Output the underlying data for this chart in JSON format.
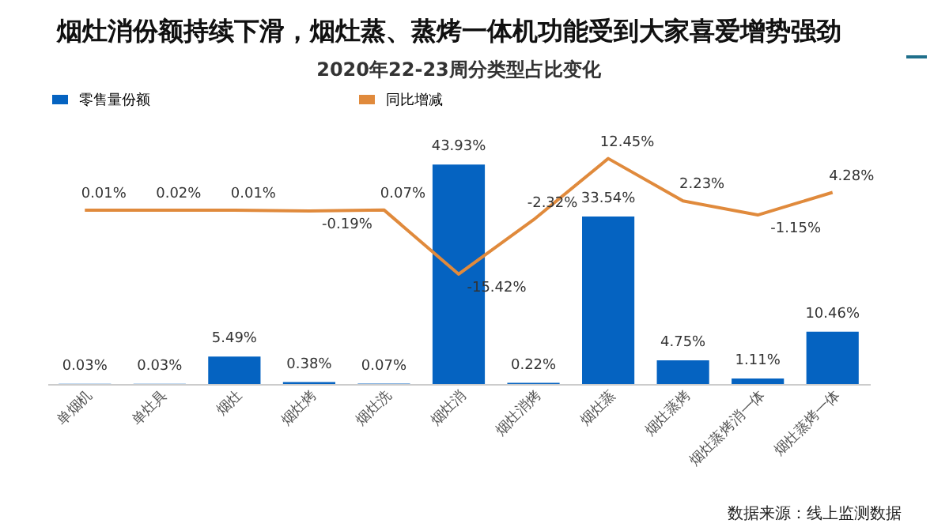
{
  "chart_data": {
    "type": "bar",
    "title": "烟灶消份额持续下滑，烟灶蒸、蒸烤一体机功能受到大家喜爱增势强劲",
    "subtitle": "2020年22-23周分类型占比变化",
    "categories": [
      "单烟机",
      "单灶具",
      "烟灶",
      "烟灶烤",
      "烟灶洗",
      "烟灶消",
      "烟灶消烤",
      "烟灶蒸",
      "烟灶蒸烤",
      "烟灶蒸烤消一体",
      "烟灶蒸烤一体"
    ],
    "series": [
      {
        "name": "零售量份额",
        "color": "#0563c1",
        "values": [
          0.03,
          0.03,
          5.49,
          0.38,
          0.07,
          43.93,
          0.22,
          33.54,
          4.75,
          1.11,
          10.46
        ],
        "value_labels": [
          "0.03%",
          "0.03%",
          "5.49%",
          "0.38%",
          "0.07%",
          "43.93%",
          "0.22%",
          "33.54%",
          "4.75%",
          "1.11%",
          "10.46%"
        ]
      },
      {
        "name": "同比增减",
        "type": "line",
        "axis": "y2",
        "color": "#e08a3c",
        "values": [
          0.01,
          0.02,
          0.01,
          -0.19,
          0.07,
          -15.42,
          -2.32,
          12.45,
          2.23,
          -1.15,
          4.28
        ],
        "value_labels": [
          "0.01%",
          "0.02%",
          "0.01%",
          "-0.19%",
          "0.07%",
          "-15.42%",
          "-2.32%",
          "12.45%",
          "2.23%",
          "-1.15%",
          "4.28%"
        ]
      }
    ],
    "legend": "top",
    "annotations": [
      "数据来源：线上监测数据"
    ]
  }
}
